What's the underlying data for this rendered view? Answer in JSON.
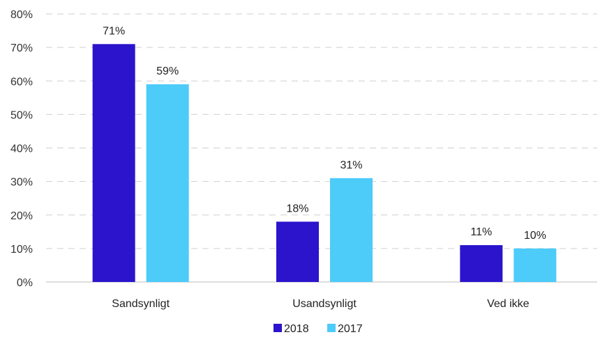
{
  "chart_data": {
    "type": "bar",
    "categories": [
      "Sandsynligt",
      "Usandsynligt",
      "Ved ikke"
    ],
    "series": [
      {
        "name": "2018",
        "values": [
          71,
          18,
          11
        ],
        "labels": [
          "71%",
          "18%",
          "11%"
        ],
        "color": "#2B14CC"
      },
      {
        "name": "2017",
        "values": [
          59,
          31,
          10
        ],
        "labels": [
          "59%",
          "31%",
          "10%"
        ],
        "color": "#4DCBF9"
      }
    ],
    "ylim": [
      0,
      80
    ],
    "y_ticks": [
      0,
      10,
      20,
      30,
      40,
      50,
      60,
      70,
      80
    ],
    "y_tick_labels": [
      "0%",
      "10%",
      "20%",
      "30%",
      "40%",
      "50%",
      "60%",
      "70%",
      "80%"
    ],
    "grid": true,
    "grid_style": "dashed",
    "legend_position": "bottom-center",
    "title": "",
    "xlabel": "",
    "ylabel": ""
  }
}
